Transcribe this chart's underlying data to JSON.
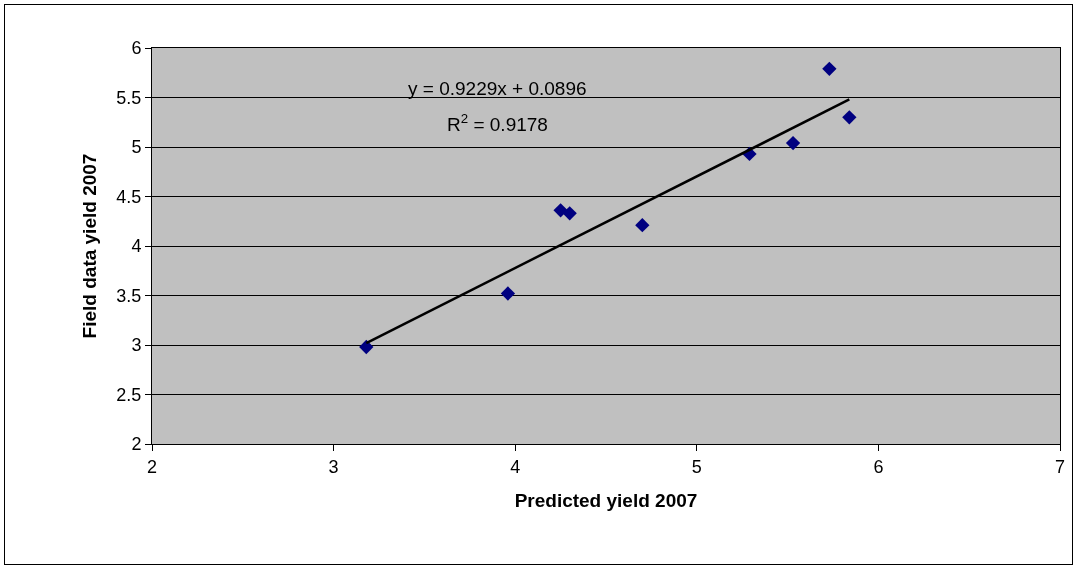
{
  "chart_data": {
    "type": "scatter",
    "xlabel": "Predicted yield 2007",
    "ylabel": "Field data yield 2007",
    "x": [
      3.18,
      3.96,
      4.25,
      4.3,
      4.7,
      5.29,
      5.53,
      5.73,
      5.84
    ],
    "series": [
      {
        "color": "#000080",
        "values": [
          2.98,
          3.52,
          4.36,
          4.33,
          4.21,
          4.93,
          5.04,
          5.79,
          5.3
        ]
      },
      {
        "type": "line",
        "color": "#000000",
        "marker": "none",
        "x": [
          3.18,
          5.84
        ],
        "values": [
          3.02,
          5.48
        ]
      }
    ],
    "annotations": [
      "y = 0.9229x + 0.0896",
      "R$^{2}$ = 0.9178"
    ],
    "xlim": [
      2,
      7
    ],
    "xticks": [
      2,
      3,
      4,
      5,
      6,
      7
    ],
    "ylim": [
      2,
      6
    ],
    "yticks": [
      2,
      2.5,
      3,
      3.5,
      4,
      4.5,
      5,
      5.5,
      6
    ],
    "grid": "y",
    "marker": "diamond"
  }
}
